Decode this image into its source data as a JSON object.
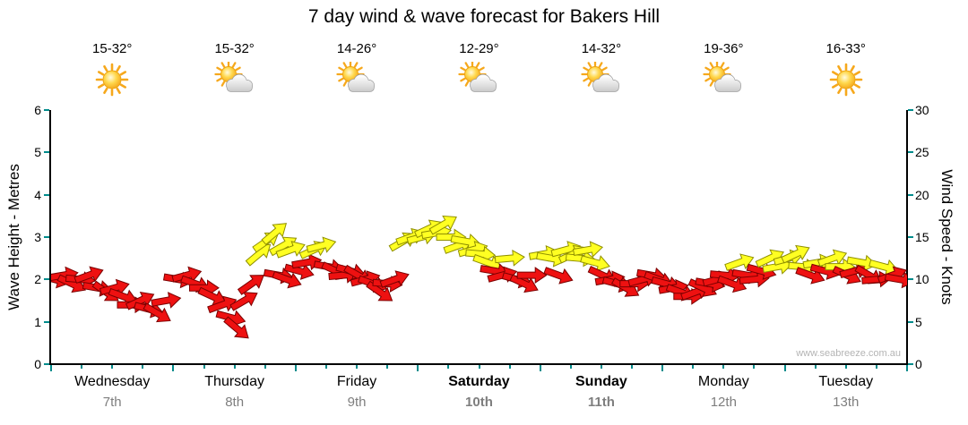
{
  "title": "7 day wind & wave forecast for Bakers Hill",
  "watermark": "www.seabreeze.com.au",
  "left_axis": {
    "title": "Wave Height - Metres",
    "min": 0,
    "max": 6,
    "step": 1
  },
  "right_axis": {
    "title": "Wind Speed - Knots",
    "min": 0,
    "max": 30,
    "step": 5
  },
  "days": [
    {
      "name": "Wednesday",
      "date": "7th",
      "temp": "15-32°",
      "icon": "sunny",
      "bold": false
    },
    {
      "name": "Thursday",
      "date": "8th",
      "temp": "15-32°",
      "icon": "partly-cloudy",
      "bold": false
    },
    {
      "name": "Friday",
      "date": "9th",
      "temp": "14-26°",
      "icon": "partly-cloudy",
      "bold": false
    },
    {
      "name": "Saturday",
      "date": "10th",
      "temp": "12-29°",
      "icon": "partly-cloudy",
      "bold": true
    },
    {
      "name": "Sunday",
      "date": "11th",
      "temp": "14-32°",
      "icon": "partly-cloudy",
      "bold": true
    },
    {
      "name": "Monday",
      "date": "12th",
      "temp": "19-36°",
      "icon": "partly-cloudy",
      "bold": false
    },
    {
      "name": "Tuesday",
      "date": "13th",
      "temp": "16-33°",
      "icon": "sunny",
      "bold": false
    }
  ],
  "colors": {
    "red": "#ee1111",
    "red_stroke": "#7a0000",
    "yellow": "#ffff22",
    "yellow_stroke": "#8f8f00",
    "tick": "#008b8b",
    "date_grey": "#7e7e7e"
  },
  "chart_data": {
    "type": "scatter",
    "title": "7 day wind & wave forecast for Bakers Hill",
    "x_axis": {
      "label": "",
      "categories": [
        "Wednesday 7th",
        "Thursday 8th",
        "Friday 9th",
        "Saturday 10th",
        "Sunday 11th",
        "Monday 12th",
        "Tuesday 13th"
      ]
    },
    "y_axis_left": {
      "label": "Wave Height - Metres",
      "range": [
        0,
        6
      ]
    },
    "y_axis_right": {
      "label": "Wind Speed - Knots",
      "range": [
        0,
        30
      ]
    },
    "legend": "red arrow = lighter wind (under ~12 knots), yellow arrow = moderate wind (~12-17 knots); arrow rotation shows wind direction",
    "arrow_format": "[day_position 0-7 (0 = start of Wednesday, 1 = start of Thursday ...), wind_speed_knots, rotation_deg (0 = pointing right, negative = tilted up), color r=red y=yellow]",
    "arrows": [
      [
        0.03,
        10,
        15,
        "r"
      ],
      [
        0.1,
        10.5,
        -10,
        "r"
      ],
      [
        0.17,
        9.5,
        25,
        "r"
      ],
      [
        0.24,
        10,
        5,
        "r"
      ],
      [
        0.31,
        10.5,
        -20,
        "r"
      ],
      [
        0.38,
        9,
        10,
        "r"
      ],
      [
        0.45,
        8.5,
        35,
        "r"
      ],
      [
        0.52,
        9,
        -15,
        "r"
      ],
      [
        0.59,
        8,
        20,
        "r"
      ],
      [
        0.66,
        7,
        0,
        "r"
      ],
      [
        0.73,
        7.5,
        -25,
        "r"
      ],
      [
        0.8,
        6.5,
        15,
        "r"
      ],
      [
        0.87,
        6,
        30,
        "r"
      ],
      [
        0.94,
        7.5,
        -10,
        "r"
      ],
      [
        1.04,
        10,
        10,
        "r"
      ],
      [
        1.11,
        10.5,
        -15,
        "r"
      ],
      [
        1.18,
        9.5,
        20,
        "r"
      ],
      [
        1.25,
        9,
        0,
        "r"
      ],
      [
        1.32,
        8,
        25,
        "r"
      ],
      [
        1.4,
        7,
        -20,
        "r"
      ],
      [
        1.47,
        5.5,
        15,
        "r"
      ],
      [
        1.52,
        4.2,
        40,
        "r"
      ],
      [
        1.58,
        7.5,
        -30,
        "r"
      ],
      [
        1.64,
        9.5,
        -35,
        "r"
      ],
      [
        1.7,
        13,
        -40,
        "y"
      ],
      [
        1.76,
        14.5,
        -35,
        "y"
      ],
      [
        1.83,
        15.5,
        -40,
        "y"
      ],
      [
        1.9,
        14,
        -30,
        "y"
      ],
      [
        1.96,
        13.5,
        -20,
        "y"
      ],
      [
        1.86,
        10.5,
        10,
        "r"
      ],
      [
        1.93,
        10,
        20,
        "r"
      ],
      [
        2.03,
        11,
        15,
        "r"
      ],
      [
        2.09,
        12,
        -10,
        "r"
      ],
      [
        2.15,
        13.5,
        -25,
        "y"
      ],
      [
        2.21,
        14,
        -15,
        "y"
      ],
      [
        2.27,
        11.5,
        10,
        "r"
      ],
      [
        2.33,
        11,
        25,
        "r"
      ],
      [
        2.39,
        10.5,
        -5,
        "r"
      ],
      [
        2.45,
        11,
        15,
        "r"
      ],
      [
        2.51,
        10.5,
        30,
        "r"
      ],
      [
        2.57,
        10,
        -15,
        "r"
      ],
      [
        2.63,
        9.5,
        20,
        "r"
      ],
      [
        2.69,
        8.5,
        35,
        "r"
      ],
      [
        2.75,
        9.5,
        5,
        "r"
      ],
      [
        2.81,
        10,
        -20,
        "r"
      ],
      [
        2.88,
        14.5,
        -30,
        "y"
      ],
      [
        2.94,
        15,
        -20,
        "y"
      ],
      [
        3.03,
        15,
        -15,
        "y"
      ],
      [
        3.09,
        16,
        -25,
        "y"
      ],
      [
        3.15,
        15.5,
        -10,
        "y"
      ],
      [
        3.21,
        16.5,
        -30,
        "y"
      ],
      [
        3.27,
        15,
        0,
        "y"
      ],
      [
        3.33,
        14,
        -20,
        "y"
      ],
      [
        3.39,
        14.5,
        10,
        "y"
      ],
      [
        3.45,
        13.5,
        -15,
        "y"
      ],
      [
        3.51,
        13,
        5,
        "y"
      ],
      [
        3.57,
        12,
        20,
        "y"
      ],
      [
        3.63,
        11,
        10,
        "r"
      ],
      [
        3.69,
        10.5,
        -15,
        "r"
      ],
      [
        3.75,
        12.5,
        -5,
        "y"
      ],
      [
        3.81,
        10,
        15,
        "r"
      ],
      [
        3.87,
        9.5,
        25,
        "r"
      ],
      [
        3.93,
        10.5,
        0,
        "r"
      ],
      [
        4.03,
        13,
        -10,
        "y"
      ],
      [
        4.09,
        12.5,
        10,
        "y"
      ],
      [
        4.15,
        10.5,
        20,
        "r"
      ],
      [
        4.21,
        13.5,
        -15,
        "y"
      ],
      [
        4.27,
        13,
        -25,
        "y"
      ],
      [
        4.33,
        12.5,
        5,
        "y"
      ],
      [
        4.39,
        13.5,
        -10,
        "y"
      ],
      [
        4.45,
        12,
        15,
        "y"
      ],
      [
        4.51,
        10.5,
        25,
        "r"
      ],
      [
        4.57,
        10,
        -10,
        "r"
      ],
      [
        4.63,
        9.5,
        15,
        "r"
      ],
      [
        4.7,
        9,
        30,
        "r"
      ],
      [
        4.77,
        9.5,
        0,
        "r"
      ],
      [
        4.84,
        10,
        -15,
        "r"
      ],
      [
        4.91,
        10.5,
        10,
        "r"
      ],
      [
        4.97,
        10,
        20,
        "r"
      ],
      [
        5.03,
        9.5,
        15,
        "r"
      ],
      [
        5.09,
        9,
        -10,
        "r"
      ],
      [
        5.15,
        8.5,
        20,
        "r"
      ],
      [
        5.21,
        8,
        0,
        "r"
      ],
      [
        5.27,
        8.5,
        -20,
        "r"
      ],
      [
        5.33,
        9,
        25,
        "r"
      ],
      [
        5.39,
        9.5,
        10,
        "r"
      ],
      [
        5.45,
        10,
        -15,
        "r"
      ],
      [
        5.51,
        10.5,
        5,
        "r"
      ],
      [
        5.57,
        9.5,
        20,
        "r"
      ],
      [
        5.63,
        12,
        -20,
        "y"
      ],
      [
        5.69,
        10.5,
        10,
        "r"
      ],
      [
        5.75,
        10,
        -5,
        "r"
      ],
      [
        5.81,
        11,
        15,
        "r"
      ],
      [
        5.88,
        12.5,
        -25,
        "y"
      ],
      [
        5.94,
        11.5,
        -10,
        "y"
      ],
      [
        6.03,
        12.5,
        -15,
        "y"
      ],
      [
        6.09,
        13,
        -25,
        "y"
      ],
      [
        6.15,
        11.5,
        5,
        "y"
      ],
      [
        6.21,
        10.5,
        20,
        "r"
      ],
      [
        6.27,
        12,
        -10,
        "y"
      ],
      [
        6.33,
        11,
        15,
        "r"
      ],
      [
        6.39,
        12.5,
        -20,
        "y"
      ],
      [
        6.45,
        11.5,
        0,
        "y"
      ],
      [
        6.51,
        10.5,
        25,
        "r"
      ],
      [
        6.57,
        11,
        -15,
        "r"
      ],
      [
        6.63,
        12,
        10,
        "y"
      ],
      [
        6.69,
        10.5,
        30,
        "r"
      ],
      [
        6.75,
        10,
        -5,
        "r"
      ],
      [
        6.81,
        11.5,
        15,
        "y"
      ],
      [
        6.88,
        10.5,
        -20,
        "r"
      ],
      [
        6.94,
        10,
        10,
        "r"
      ]
    ]
  }
}
